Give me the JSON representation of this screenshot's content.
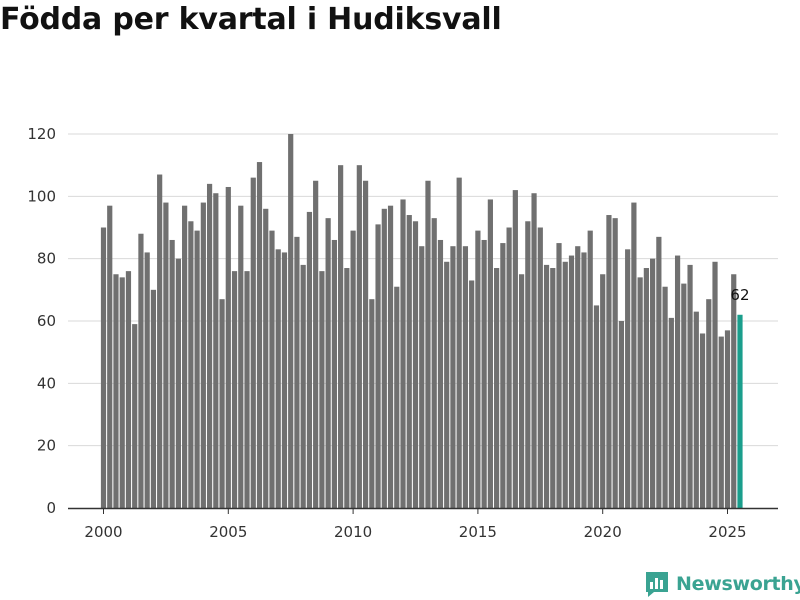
{
  "title": "Födda per kvartal i Hudiksvall",
  "brand": {
    "name": "Newsworthy",
    "icon": "newsworthy-logo-icon",
    "color": "#3aa392"
  },
  "chart_data": {
    "type": "bar",
    "title": "Födda per kvartal i Hudiksvall",
    "xlabel": "",
    "ylabel": "",
    "ylim": [
      0,
      120
    ],
    "yticks": [
      0,
      20,
      40,
      60,
      80,
      100,
      120
    ],
    "xticks": [
      2000,
      2005,
      2010,
      2015,
      2020,
      2025
    ],
    "start_year": 2000,
    "grid": true,
    "colors": {
      "default": "#707070",
      "highlight": "#1a9e8c"
    },
    "highlight_last": true,
    "last_label": "62",
    "values": [
      90,
      97,
      75,
      74,
      76,
      59,
      88,
      82,
      70,
      107,
      98,
      86,
      80,
      97,
      92,
      89,
      98,
      104,
      101,
      67,
      103,
      76,
      97,
      76,
      106,
      111,
      96,
      89,
      83,
      82,
      120,
      87,
      78,
      95,
      105,
      76,
      93,
      86,
      110,
      77,
      89,
      110,
      105,
      67,
      91,
      96,
      97,
      71,
      99,
      94,
      92,
      84,
      105,
      93,
      86,
      79,
      84,
      106,
      84,
      73,
      89,
      86,
      99,
      77,
      85,
      90,
      102,
      75,
      92,
      101,
      90,
      78,
      77,
      85,
      79,
      81,
      84,
      82,
      89,
      65,
      75,
      94,
      93,
      60,
      83,
      98,
      74,
      77,
      80,
      87,
      71,
      61,
      81,
      72,
      78,
      63,
      56,
      67,
      79,
      55,
      57,
      75,
      62
    ]
  }
}
